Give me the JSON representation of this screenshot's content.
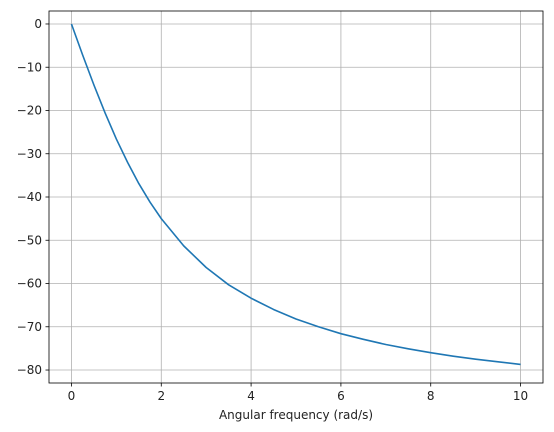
{
  "chart_data": {
    "type": "line",
    "title": "",
    "xlabel": "Angular frequency (rad/s)",
    "ylabel": "",
    "xlim": [
      -0.5,
      10.5
    ],
    "ylim": [
      -83,
      3
    ],
    "grid": true,
    "xticks": [
      0,
      2,
      4,
      6,
      8,
      10
    ],
    "xtick_labels": [
      "0",
      "2",
      "4",
      "6",
      "8",
      "10"
    ],
    "yticks": [
      0,
      -10,
      -20,
      -30,
      -40,
      -50,
      -60,
      -70,
      -80
    ],
    "ytick_labels": [
      "0",
      "−10",
      "−20",
      "−30",
      "−40",
      "−50",
      "−60",
      "−70",
      "−80"
    ],
    "series": [
      {
        "color": "#1f77b4",
        "x": [
          0,
          0.25,
          0.5,
          0.75,
          1,
          1.25,
          1.5,
          1.75,
          2,
          2.5,
          3,
          3.5,
          4,
          4.5,
          5,
          5.5,
          6,
          6.5,
          7,
          7.5,
          8,
          8.5,
          9,
          9.5,
          10
        ],
        "y": [
          0,
          -7.2,
          -14.1,
          -20.6,
          -26.6,
          -32.0,
          -36.9,
          -41.2,
          -45.0,
          -51.3,
          -56.3,
          -60.3,
          -63.4,
          -66.0,
          -68.2,
          -70.0,
          -71.6,
          -72.9,
          -74.1,
          -75.1,
          -76.0,
          -76.8,
          -77.5,
          -78.1,
          -78.7
        ]
      }
    ]
  }
}
